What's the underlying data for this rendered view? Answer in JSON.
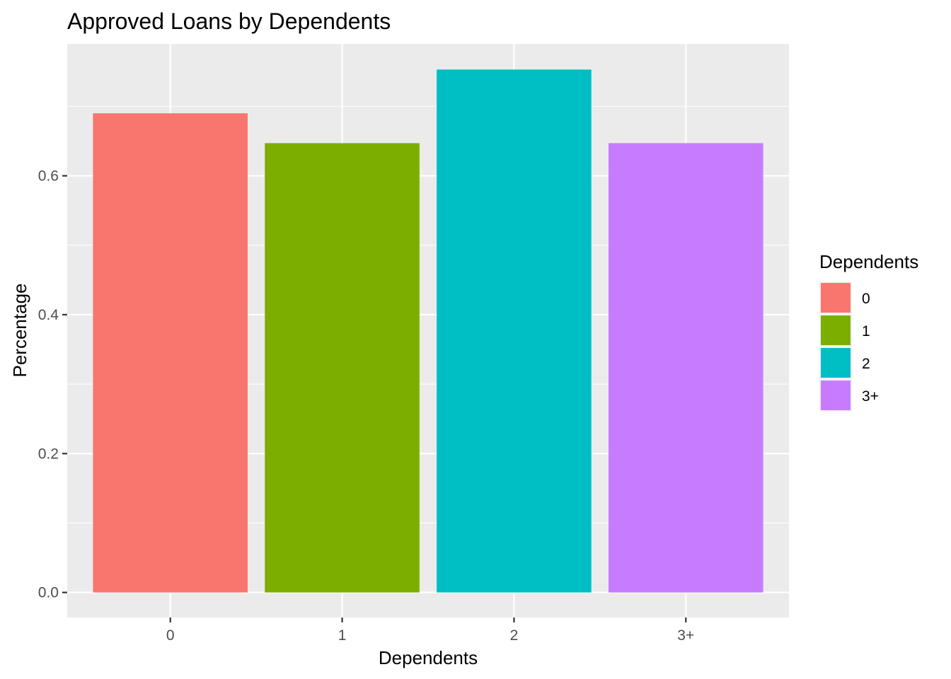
{
  "chart_data": {
    "type": "bar",
    "title": "Approved Loans by Dependents",
    "xlabel": "Dependents",
    "ylabel": "Percentage",
    "categories": [
      "0",
      "1",
      "2",
      "3+"
    ],
    "values": [
      0.69,
      0.647,
      0.753,
      0.647
    ],
    "colors": [
      "#F8766D",
      "#7CAE00",
      "#00BFC4",
      "#C77CFF"
    ],
    "ylim": [
      -0.036,
      0.79
    ],
    "yticks": [
      0.0,
      0.2,
      0.4,
      0.6
    ],
    "ytick_labels": [
      "0.0",
      "0.2",
      "0.4",
      "0.6"
    ],
    "grid": true,
    "panel_background": "#EBEBEB",
    "legend": {
      "title": "Dependents",
      "position": "right",
      "entries": [
        "0",
        "1",
        "2",
        "3+"
      ]
    }
  }
}
